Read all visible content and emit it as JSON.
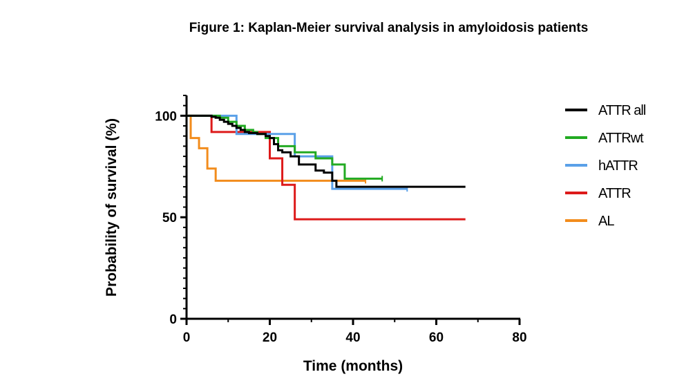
{
  "title": "Figure 1: Kaplan-Meier survival analysis in amyloidosis patients",
  "chart_data": {
    "type": "line",
    "step": true,
    "xlabel": "Time (months)",
    "ylabel": "Probability of survival (%)",
    "xlim": [
      0,
      80
    ],
    "ylim": [
      0,
      110
    ],
    "xticks": [
      0,
      20,
      40,
      60,
      80
    ],
    "yticks": [
      0,
      50,
      100
    ],
    "grid": false,
    "legend_position": "right",
    "series": [
      {
        "name": "ATTR all",
        "color": "#000000",
        "x": [
          0,
          5,
          6,
          7,
          8,
          9,
          10,
          11,
          12,
          13,
          14,
          15,
          17,
          19,
          20,
          21,
          22,
          23,
          25,
          27,
          31,
          33,
          35,
          36,
          67
        ],
        "y": [
          100,
          100,
          99.5,
          99,
          98,
          97,
          96,
          95,
          94,
          93,
          92,
          91.5,
          91,
          90,
          89,
          86,
          83,
          82,
          80,
          76,
          73,
          72,
          68,
          65,
          65
        ]
      },
      {
        "name": "ATTRwt",
        "color": "#22aa22",
        "x": [
          0,
          6,
          8,
          10,
          12,
          14,
          16,
          17,
          19,
          22,
          26,
          31,
          35,
          38,
          47
        ],
        "y": [
          100,
          100,
          99,
          97,
          95,
          93,
          92,
          91,
          89,
          85,
          82,
          79,
          76,
          69,
          69
        ],
        "censored": [
          47
        ]
      },
      {
        "name": "hATTR",
        "color": "#5aa0e8",
        "x": [
          0,
          12,
          26,
          35,
          53
        ],
        "y": [
          100,
          91,
          80,
          64,
          64
        ],
        "censored": [
          53
        ]
      },
      {
        "name": "ATTR",
        "color": "#dd1a1a",
        "x": [
          0,
          6,
          20,
          23,
          26,
          67
        ],
        "y": [
          100,
          92,
          79,
          66,
          49,
          49
        ]
      },
      {
        "name": "AL",
        "color": "#f28c1c",
        "x": [
          0,
          1,
          3,
          5,
          7,
          43
        ],
        "y": [
          100,
          89,
          84,
          74,
          68,
          68
        ],
        "censored": [
          43
        ]
      }
    ]
  }
}
